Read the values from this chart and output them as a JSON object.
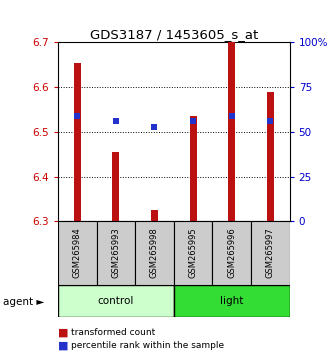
{
  "title": "GDS3187 / 1453605_s_at",
  "samples": [
    "GSM265984",
    "GSM265993",
    "GSM265998",
    "GSM265995",
    "GSM265996",
    "GSM265997"
  ],
  "groups": [
    "control",
    "control",
    "control",
    "light",
    "light",
    "light"
  ],
  "bar_values": [
    6.655,
    6.455,
    6.325,
    6.535,
    6.705,
    6.59
  ],
  "percentile_values": [
    6.535,
    6.525,
    6.51,
    6.525,
    6.535,
    6.525
  ],
  "bar_bottom": 6.3,
  "ylim": [
    6.3,
    6.7
  ],
  "yticks_left": [
    6.3,
    6.4,
    6.5,
    6.6,
    6.7
  ],
  "bar_color": "#bb1111",
  "percentile_color": "#2233cc",
  "control_color": "#ccffcc",
  "light_color": "#33dd33",
  "sample_box_color": "#cccccc",
  "bar_width": 0.18,
  "percentile_size": 5,
  "legend_red_label": "transformed count",
  "legend_blue_label": "percentile rank within the sample",
  "agent_label": "agent ►",
  "control_label": "control",
  "light_label": "light",
  "right_tick_labels": [
    "0",
    "25",
    "50",
    "75",
    "100%"
  ],
  "right_tick_pos": [
    6.3,
    6.4,
    6.5,
    6.6,
    6.7
  ]
}
